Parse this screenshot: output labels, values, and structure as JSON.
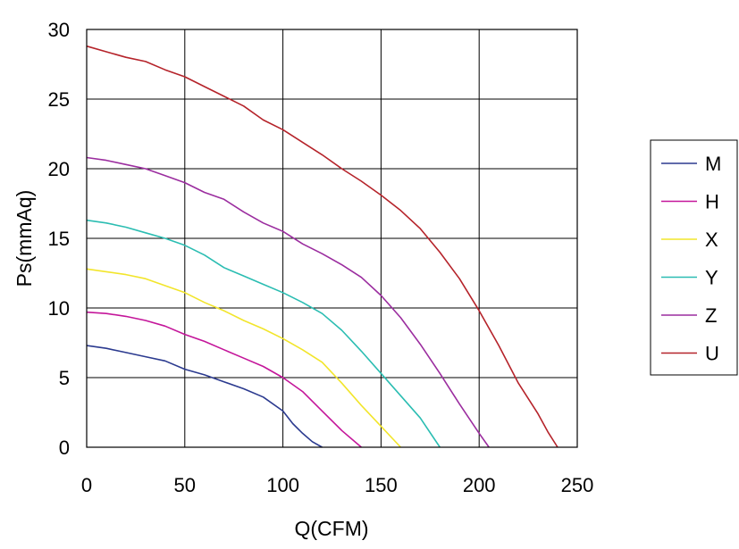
{
  "chart_data": {
    "type": "line",
    "xlabel": "Q(CFM)",
    "ylabel": "Ps(mmAq)",
    "xlim": [
      0,
      250
    ],
    "ylim": [
      0,
      30
    ],
    "x_ticks": [
      0,
      50,
      100,
      150,
      200,
      250
    ],
    "y_ticks": [
      0,
      5,
      10,
      15,
      20,
      25,
      30
    ],
    "x_tick_labels": [
      "0",
      "50",
      "100",
      "150",
      "200",
      "250"
    ],
    "y_tick_labels": [
      "0",
      "5",
      "10",
      "15",
      "20",
      "25",
      "30"
    ],
    "grid": true,
    "legend_position": "right",
    "series": [
      {
        "name": "M",
        "color": "#2b3a8f",
        "x": [
          0,
          10,
          20,
          30,
          40,
          50,
          60,
          70,
          80,
          90,
          100,
          105,
          110,
          115,
          120
        ],
        "y": [
          7.3,
          7.1,
          6.8,
          6.5,
          6.2,
          5.6,
          5.2,
          4.7,
          4.2,
          3.6,
          2.6,
          1.7,
          1.0,
          0.4,
          0
        ]
      },
      {
        "name": "H",
        "color": "#c4169a",
        "x": [
          0,
          10,
          20,
          30,
          40,
          50,
          60,
          70,
          80,
          90,
          100,
          110,
          120,
          130,
          140
        ],
        "y": [
          9.7,
          9.6,
          9.4,
          9.1,
          8.7,
          8.1,
          7.6,
          7.0,
          6.4,
          5.8,
          5.0,
          4.0,
          2.6,
          1.2,
          0
        ]
      },
      {
        "name": "X",
        "color": "#f2e52b",
        "x": [
          0,
          10,
          20,
          30,
          40,
          50,
          60,
          70,
          80,
          90,
          100,
          110,
          120,
          130,
          140,
          150,
          160
        ],
        "y": [
          12.8,
          12.6,
          12.4,
          12.1,
          11.6,
          11.1,
          10.4,
          9.8,
          9.1,
          8.5,
          7.8,
          7.0,
          6.1,
          4.6,
          3.0,
          1.5,
          0
        ]
      },
      {
        "name": "Y",
        "color": "#2bbdb2",
        "x": [
          0,
          10,
          20,
          30,
          40,
          50,
          60,
          70,
          80,
          90,
          100,
          110,
          120,
          130,
          140,
          150,
          160,
          170,
          180
        ],
        "y": [
          16.3,
          16.1,
          15.8,
          15.4,
          15.0,
          14.5,
          13.8,
          12.9,
          12.3,
          11.7,
          11.1,
          10.4,
          9.6,
          8.4,
          6.9,
          5.3,
          3.7,
          2.1,
          0
        ]
      },
      {
        "name": "Z",
        "color": "#9b2d9f",
        "x": [
          0,
          10,
          20,
          30,
          40,
          50,
          60,
          70,
          80,
          90,
          100,
          110,
          120,
          130,
          140,
          150,
          160,
          170,
          180,
          190,
          200,
          205
        ],
        "y": [
          20.8,
          20.6,
          20.3,
          20.0,
          19.5,
          19.0,
          18.3,
          17.8,
          16.9,
          16.1,
          15.5,
          14.6,
          13.9,
          13.1,
          12.2,
          10.9,
          9.3,
          7.4,
          5.3,
          3.1,
          1.0,
          0
        ]
      },
      {
        "name": "U",
        "color": "#b5232a",
        "x": [
          0,
          10,
          20,
          30,
          40,
          50,
          60,
          70,
          80,
          90,
          100,
          110,
          120,
          130,
          140,
          150,
          160,
          170,
          180,
          190,
          200,
          210,
          220,
          230,
          235,
          240
        ],
        "y": [
          28.8,
          28.4,
          28.0,
          27.7,
          27.1,
          26.6,
          25.9,
          25.2,
          24.5,
          23.5,
          22.8,
          21.9,
          21.0,
          20.0,
          19.1,
          18.1,
          17.0,
          15.7,
          14.0,
          12.1,
          9.8,
          7.3,
          4.6,
          2.4,
          1.1,
          0
        ]
      }
    ]
  }
}
